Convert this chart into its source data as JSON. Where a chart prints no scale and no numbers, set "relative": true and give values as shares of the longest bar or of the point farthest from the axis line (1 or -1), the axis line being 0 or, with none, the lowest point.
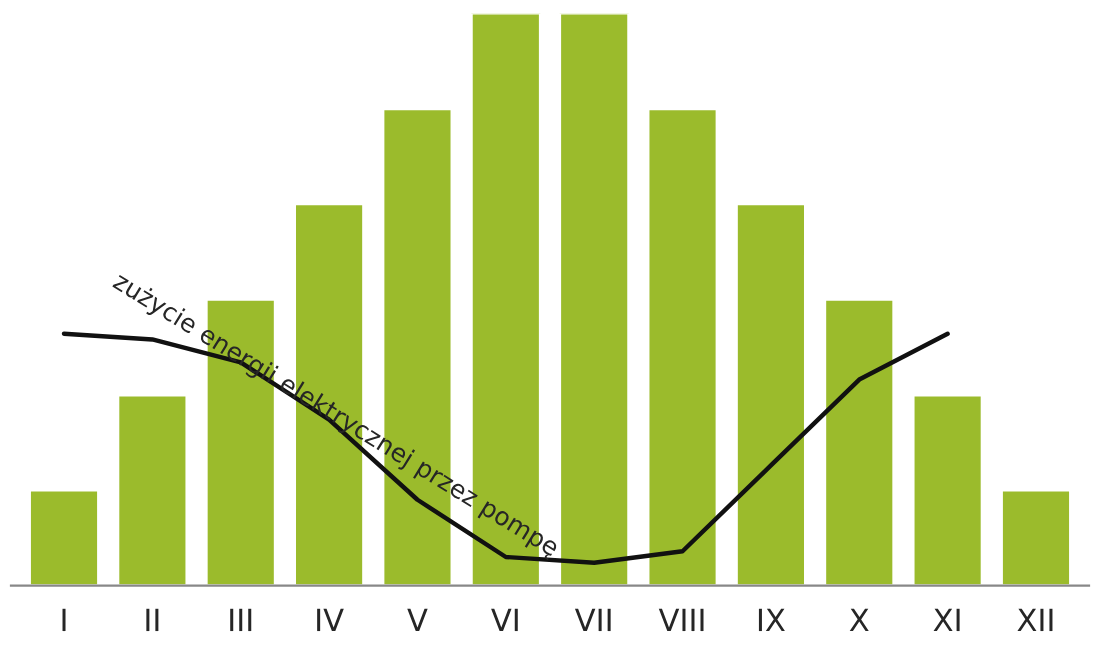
{
  "chart_data": {
    "type": "bar",
    "relative": true,
    "categories": [
      "I",
      "II",
      "III",
      "IV",
      "V",
      "VI",
      "VII",
      "VIII",
      "IX",
      "X",
      "XI",
      "XII"
    ],
    "series": [
      {
        "color": "#9bbb2c",
        "values": [
          0.167,
          0.333,
          0.5,
          0.667,
          0.833,
          1,
          1,
          0.833,
          0.667,
          0.5,
          0.333,
          0.167
        ]
      },
      {
        "type": "line",
        "name": "zużycie energii elektrycznej przez pompę",
        "color": "#111111",
        "values": [
          0.44,
          0.43,
          0.39,
          0.29,
          0.15,
          0.05,
          0.04,
          0.06,
          0.21,
          0.36,
          0.44,
          null
        ]
      }
    ]
  }
}
